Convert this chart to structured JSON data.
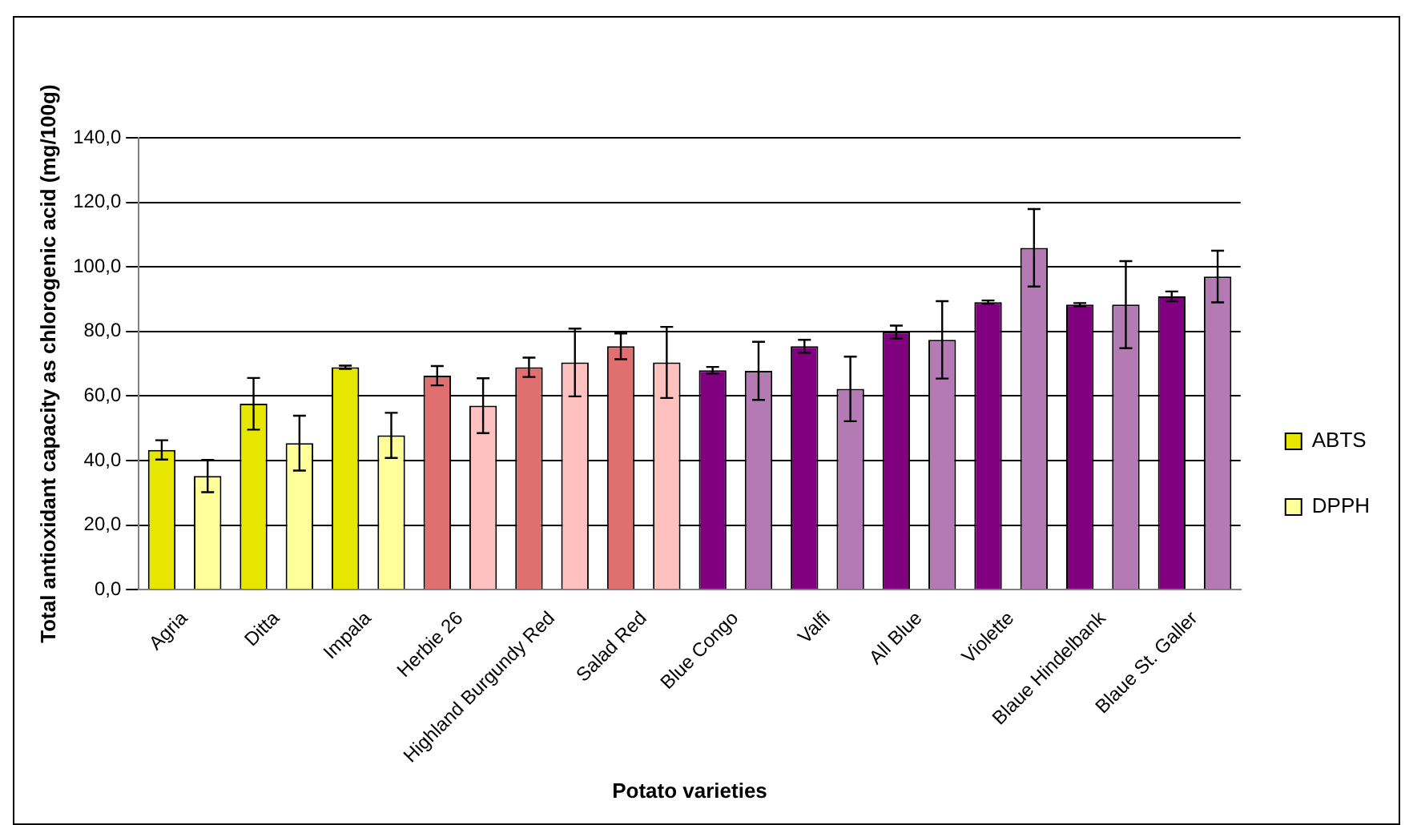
{
  "chart_data": {
    "type": "bar",
    "xlabel": "Potato varieties",
    "ylabel": "Total antioxidant capacity as chlorogenic acid (mg/100g)",
    "categories": [
      "Agria",
      "Ditta",
      "Impala",
      "Herbie 26",
      "Highland Burgundy Red",
      "Salad Red",
      "Blue Congo",
      "Valfi",
      "All Blue",
      "Violette",
      "Blaue Hindelbank",
      "Blaue St. Galler"
    ],
    "series": [
      {
        "name": "ABTS",
        "color": "#e6e600",
        "colors": [
          "#e6e600",
          "#e6e600",
          "#e6e600",
          "#e07070",
          "#e07070",
          "#e07070",
          "#800080",
          "#800080",
          "#800080",
          "#800080",
          "#800080",
          "#800080"
        ],
        "values": [
          43.3,
          57.6,
          68.9,
          66.3,
          68.9,
          75.4,
          68,
          75.4,
          79.8,
          89.1,
          88.3,
          90.9
        ],
        "errors": [
          3,
          8,
          0.5,
          3,
          3,
          4,
          1,
          2,
          2,
          0.5,
          0.5,
          1.5
        ]
      },
      {
        "name": "DPPH",
        "color": "#ffff99",
        "colors": [
          "#ffff99",
          "#ffff99",
          "#ffff99",
          "#ffc0c0",
          "#ffc0c0",
          "#ffc0c0",
          "#b47ab4",
          "#b47ab4",
          "#b47ab4",
          "#b47ab4",
          "#b47ab4",
          "#b47ab4"
        ],
        "values": [
          35.2,
          45.4,
          47.8,
          57,
          70.4,
          70.4,
          67.8,
          62.2,
          77.4,
          105.9,
          88.3,
          97
        ],
        "errors": [
          5,
          8.5,
          7,
          8.5,
          10.5,
          11,
          9,
          10,
          12,
          12,
          13.5,
          8
        ]
      }
    ],
    "ylim": [
      0,
      140
    ],
    "yticks": [
      {
        "value": 0,
        "label": "0,0"
      },
      {
        "value": 20,
        "label": "20,0"
      },
      {
        "value": 40,
        "label": "40,0"
      },
      {
        "value": 60,
        "label": "60,0"
      },
      {
        "value": 80,
        "label": "80,0"
      },
      {
        "value": 100,
        "label": "100,0"
      },
      {
        "value": 120,
        "label": "120,0"
      },
      {
        "value": 140,
        "label": "140,0"
      }
    ],
    "grid": "y",
    "legend": "right"
  }
}
